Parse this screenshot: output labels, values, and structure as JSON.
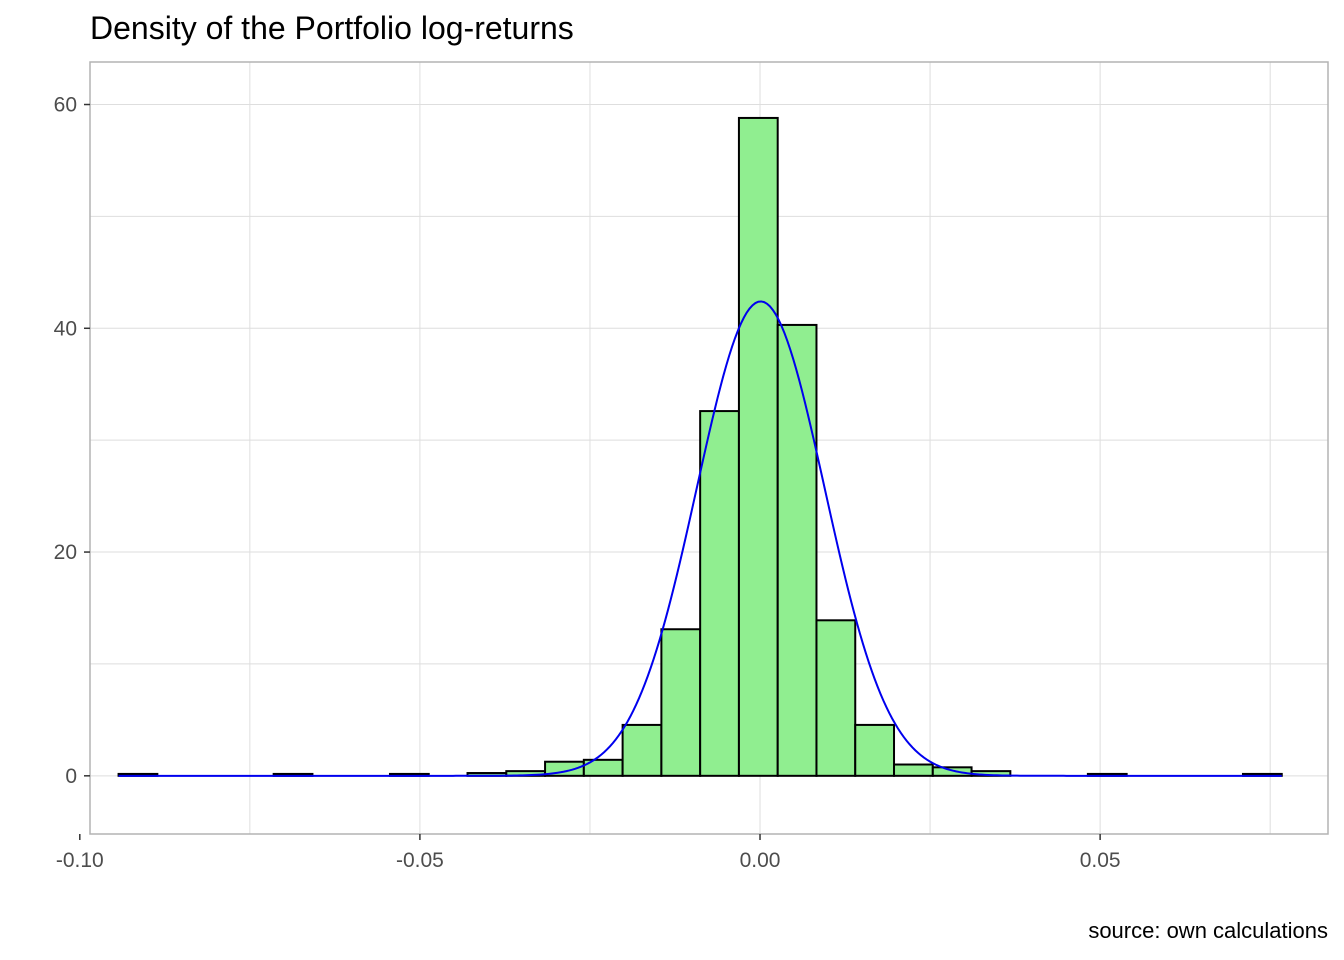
{
  "chart_data": {
    "type": "bar",
    "title": "Density of the Portfolio log-returns",
    "caption": "source: own calculations",
    "xlabel": "",
    "ylabel": "",
    "xlim": [
      -0.0985,
      0.0835
    ],
    "ylim": [
      -5.2,
      63.8
    ],
    "x_ticks": [
      -0.1,
      -0.05,
      0.0,
      0.05
    ],
    "x_tick_labels": [
      "-0.10",
      "-0.05",
      "0.00",
      "0.05"
    ],
    "y_ticks": [
      0,
      20,
      40,
      60
    ],
    "y_tick_labels": [
      "0",
      "20",
      "40",
      "60"
    ],
    "grid": true,
    "bin_width": 0.0057,
    "bins": [
      {
        "x0": -0.0943,
        "value": 0.17
      },
      {
        "x0": -0.0715,
        "value": 0.17
      },
      {
        "x0": -0.0544,
        "value": 0.17
      },
      {
        "x0": -0.043,
        "value": 0.25
      },
      {
        "x0": -0.0373,
        "value": 0.42
      },
      {
        "x0": -0.0316,
        "value": 1.26
      },
      {
        "x0": -0.0259,
        "value": 1.43
      },
      {
        "x0": -0.0202,
        "value": 4.55
      },
      {
        "x0": -0.0145,
        "value": 13.1
      },
      {
        "x0": -0.0088,
        "value": 32.6
      },
      {
        "x0": -0.0031,
        "value": 58.8
      },
      {
        "x0": 0.0026,
        "value": 40.3
      },
      {
        "x0": 0.0083,
        "value": 13.9
      },
      {
        "x0": 0.014,
        "value": 4.55
      },
      {
        "x0": 0.0197,
        "value": 1.01
      },
      {
        "x0": 0.0254,
        "value": 0.76
      },
      {
        "x0": 0.0311,
        "value": 0.42
      },
      {
        "x0": 0.0482,
        "value": 0.17
      },
      {
        "x0": 0.071,
        "value": 0.17
      }
    ],
    "density_curve": {
      "type": "normal",
      "mean": 0.0001,
      "sd": 0.0094,
      "peak": 42.4,
      "x_range": [
        -0.0943,
        0.0767
      ]
    },
    "colors": {
      "bar_fill": "#90ee90",
      "bar_border": "#000000",
      "curve": "#0000ee",
      "grid": "#dedede",
      "panel_border": "#b3b3b3"
    }
  }
}
